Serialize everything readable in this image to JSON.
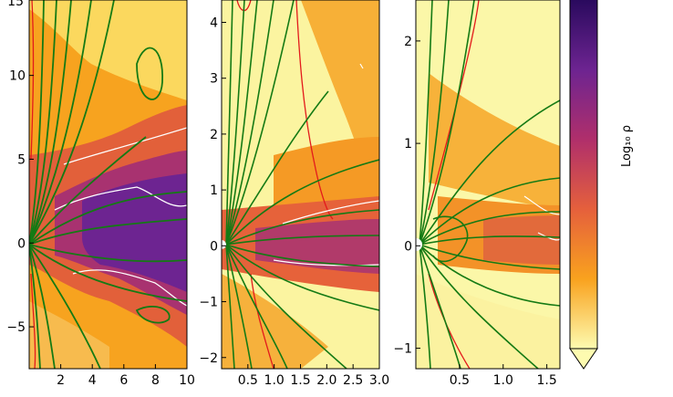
{
  "chart_data": {
    "type": "heatmap",
    "panels": [
      {
        "name": "left",
        "xlim": [
          0,
          10
        ],
        "ylim": [
          -7.5,
          14.5
        ],
        "xticks": [
          2,
          4,
          6,
          8,
          10
        ],
        "xtick_labels": [
          "2",
          "4",
          "6",
          "8",
          "10"
        ],
        "yticks": [
          -5,
          0,
          5,
          10
        ],
        "ytick_labels": [
          "−5",
          "0",
          "5",
          "10"
        ],
        "top_label": "15"
      },
      {
        "name": "middle",
        "xlim": [
          0,
          3.0
        ],
        "ylim": [
          -2.2,
          4.4
        ],
        "xticks": [
          0.5,
          1.0,
          1.5,
          2.0,
          2.5,
          3.0
        ],
        "xtick_labels": [
          "0.5",
          "1.0",
          "1.5",
          "2.0",
          "2.5",
          "3.0"
        ],
        "yticks": [
          -2,
          -1,
          0,
          1,
          2,
          3,
          4
        ],
        "ytick_labels": [
          "−2",
          "−1",
          "0",
          "1",
          "2",
          "3",
          "4"
        ]
      },
      {
        "name": "right",
        "xlim": [
          0,
          1.65
        ],
        "ylim": [
          -1.2,
          2.4
        ],
        "xticks": [
          0.5,
          1.0,
          1.5
        ],
        "xtick_labels": [
          "0.5",
          "1.0",
          "1.5"
        ],
        "yticks": [
          -1,
          0,
          1,
          2
        ],
        "ytick_labels": [
          "−1",
          "0",
          "1",
          "2"
        ]
      }
    ],
    "colorbar": {
      "label": "Log₁₀ ρ",
      "colormap": [
        "#fdfbb0",
        "#f9a21e",
        "#e5603c",
        "#b02f6b",
        "#6d2491",
        "#2a0a5e"
      ],
      "extend": "min"
    },
    "overlays": {
      "field_line_color": "#157a14",
      "contour_red_color": "#e31a1c",
      "contour_white_color": "#ffffff"
    }
  }
}
